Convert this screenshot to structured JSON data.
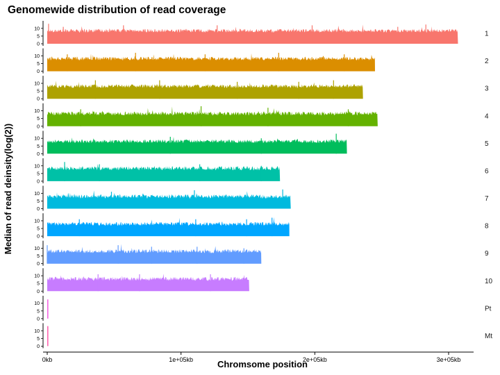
{
  "chart_data": {
    "type": "area",
    "title": "Genomewide distribution of read coverage",
    "xlabel": "Chromsome position",
    "ylabel": "Median of read deinsity(log(2))",
    "x_unit": "kb",
    "xlim": [
      0,
      320000
    ],
    "ylim": [
      0,
      14
    ],
    "x_ticks": [
      {
        "value": 0,
        "label": "0kb"
      },
      {
        "value": 100000,
        "label": "1e+05kb"
      },
      {
        "value": 200000,
        "label": "2e+05kb"
      },
      {
        "value": 300000,
        "label": "3e+05kb"
      }
    ],
    "y_ticks": [
      {
        "value": 0,
        "label": "0"
      },
      {
        "value": 5,
        "label": "5"
      },
      {
        "value": 10,
        "label": "10"
      }
    ],
    "series": [
      {
        "name": "1",
        "color": "#F8766D",
        "length": 307000,
        "baseline": 8.5,
        "variation": 1.2,
        "spikes": [
          [
            1000,
            13
          ],
          [
            12000,
            11
          ],
          [
            57000,
            12
          ],
          [
            127000,
            12
          ],
          [
            198000,
            12
          ],
          [
            262000,
            11
          ],
          [
            283000,
            12.5
          ]
        ]
      },
      {
        "name": "2",
        "color": "#DB8E00",
        "length": 245000,
        "baseline": 8.3,
        "variation": 1.2,
        "spikes": [
          [
            15000,
            11
          ],
          [
            66000,
            12
          ],
          [
            118000,
            11
          ],
          [
            173000,
            12
          ],
          [
            222000,
            11
          ]
        ]
      },
      {
        "name": "3",
        "color": "#AEA200",
        "length": 236000,
        "baseline": 8.2,
        "variation": 1.2,
        "spikes": [
          [
            36000,
            12
          ],
          [
            84000,
            12
          ],
          [
            142000,
            11
          ],
          [
            188000,
            11
          ],
          [
            214000,
            12
          ]
        ]
      },
      {
        "name": "4",
        "color": "#64B200",
        "length": 247000,
        "baseline": 8.3,
        "variation": 1.3,
        "spikes": [
          [
            25000,
            11
          ],
          [
            115000,
            13
          ],
          [
            165000,
            12
          ],
          [
            225000,
            11
          ]
        ]
      },
      {
        "name": "5",
        "color": "#00BD5C",
        "length": 224000,
        "baseline": 8.1,
        "variation": 1.2,
        "spikes": [
          [
            92000,
            11
          ],
          [
            160000,
            10
          ],
          [
            216000,
            13
          ]
        ]
      },
      {
        "name": "6",
        "color": "#00C1A7",
        "length": 174000,
        "baseline": 8.4,
        "variation": 1.3,
        "spikes": [
          [
            13000,
            12.5
          ],
          [
            39000,
            11
          ],
          [
            114000,
            11
          ],
          [
            160000,
            10
          ]
        ]
      },
      {
        "name": "7",
        "color": "#00BADE",
        "length": 182000,
        "baseline": 8.0,
        "variation": 1.3,
        "spikes": [
          [
            48000,
            11
          ],
          [
            110000,
            12
          ],
          [
            176000,
            12.5
          ]
        ]
      },
      {
        "name": "8",
        "color": "#00A6FF",
        "length": 181000,
        "baseline": 8.0,
        "variation": 1.2,
        "spikes": [
          [
            24000,
            11
          ],
          [
            111000,
            11
          ],
          [
            149000,
            11
          ],
          [
            168000,
            12
          ]
        ]
      },
      {
        "name": "9",
        "color": "#619CFF",
        "length": 160000,
        "baseline": 8.1,
        "variation": 1.3,
        "spikes": [
          [
            0,
            12
          ],
          [
            53000,
            12
          ],
          [
            78000,
            11
          ],
          [
            112000,
            11
          ],
          [
            147000,
            10
          ]
        ]
      },
      {
        "name": "10",
        "color": "#C77CFF",
        "length": 151000,
        "baseline": 8.0,
        "variation": 1.3,
        "spikes": [
          [
            38000,
            11
          ],
          [
            69000,
            11
          ],
          [
            122000,
            11
          ]
        ]
      },
      {
        "name": "Pt",
        "color": "#F564E3",
        "length": 700,
        "baseline": 12.5,
        "variation": 0.5,
        "spikes": []
      },
      {
        "name": "Mt",
        "color": "#FF64B0",
        "length": 700,
        "baseline": 13,
        "variation": 0.5,
        "spikes": []
      }
    ]
  }
}
